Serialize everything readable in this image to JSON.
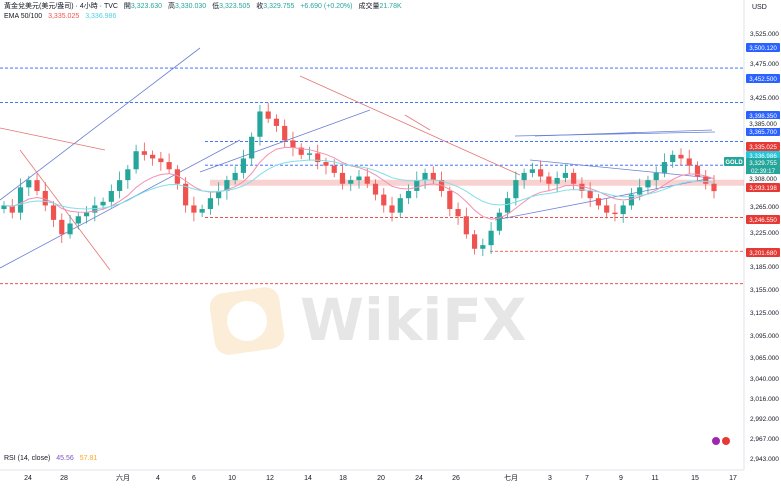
{
  "header": {
    "symbol_title": "黃金兌美元(美元/盎司) · 4小時 · TVC",
    "ohlc": {
      "open_label": "開",
      "open": "3,323.630",
      "high_label": "高",
      "high": "3,330.030",
      "low_label": "低",
      "low": "3,323.505",
      "close_label": "收",
      "close": "3,329.755",
      "change": "+6.690 (+0.20%)",
      "volume_label": "成交量",
      "volume": "21.78K"
    },
    "ema_label": "EMA 50/100",
    "ema50": "3,335.025",
    "ema100": "3,336.986"
  },
  "rsi": {
    "label": "RSI (14, close)",
    "value1": "45.56",
    "value2": "57.81"
  },
  "currency": "USD",
  "watermark": "WikiFX",
  "colors": {
    "up": "#26a69a",
    "down": "#ef5350",
    "trendline": "#6b7fd7",
    "level_red": "#e53935",
    "level_blue": "#2962ff",
    "ema50": "#f48fb1",
    "ema100": "#80deea"
  },
  "axis": {
    "y_ticks": [
      "3,525.000",
      "3,475.000",
      "3,425.000",
      "3,265.000",
      "3,225.000",
      "3,185.000",
      "3,155.000",
      "3,125.000",
      "3,095.000",
      "3,065.000",
      "3,040.000",
      "3,016.000",
      "2,992.000",
      "2,967.000",
      "2,943.000"
    ],
    "x_ticks": [
      "24",
      "28",
      "六月",
      "4",
      "6",
      "10",
      "12",
      "14",
      "18",
      "20",
      "24",
      "26",
      "七月",
      "3",
      "7",
      "9",
      "11",
      "15",
      "17"
    ]
  },
  "price_labels": [
    {
      "text": "3,500.120",
      "kind": "blue"
    },
    {
      "text": "3,452.500",
      "kind": "blue"
    },
    {
      "text": "3,398.350",
      "kind": "blue"
    },
    {
      "text": "3,365.700",
      "kind": "blue"
    },
    {
      "text": "3,385.000",
      "kind": "gray"
    },
    {
      "text": "3,335.025",
      "kind": "red"
    },
    {
      "text": "3,336.986",
      "kind": "teal"
    },
    {
      "text": "3,329.755",
      "kind": "green"
    },
    {
      "text": "02:39:17",
      "kind": "green"
    },
    {
      "text": "3,308.000",
      "kind": "gray"
    },
    {
      "text": "3,293.198",
      "kind": "red"
    },
    {
      "text": "3,246.550",
      "kind": "red"
    },
    {
      "text": "3,201.680",
      "kind": "red"
    }
  ],
  "symbol_tag": "GOLD",
  "chart_data": {
    "type": "candlestick",
    "y_range": [
      2930,
      3550
    ],
    "levels": [
      {
        "value": 3500.12,
        "style": "blue-dashed"
      },
      {
        "value": 3452.5,
        "style": "blue-dashed"
      },
      {
        "value": 3398.35,
        "style": "blue-dashed"
      },
      {
        "value": 3365.7,
        "style": "blue-dashed"
      },
      {
        "value": 3293.198,
        "style": "red-dashed"
      },
      {
        "value": 3246.55,
        "style": "red-dashed"
      },
      {
        "value": 3201.68,
        "style": "red-dashed"
      }
    ],
    "close_path": [
      3310,
      3300,
      3335,
      3345,
      3330,
      3310,
      3290,
      3270,
      3285,
      3295,
      3300,
      3310,
      3315,
      3330,
      3345,
      3360,
      3385,
      3380,
      3375,
      3370,
      3360,
      3340,
      3310,
      3300,
      3305,
      3320,
      3330,
      3345,
      3355,
      3375,
      3405,
      3440,
      3430,
      3420,
      3400,
      3390,
      3380,
      3382,
      3370,
      3365,
      3355,
      3340,
      3345,
      3350,
      3340,
      3325,
      3310,
      3300,
      3320,
      3330,
      3345,
      3355,
      3345,
      3330,
      3305,
      3295,
      3270,
      3250,
      3255,
      3275,
      3300,
      3320,
      3345,
      3355,
      3360,
      3350,
      3340,
      3348,
      3355,
      3340,
      3330,
      3320,
      3310,
      3300,
      3298,
      3310,
      3325,
      3335,
      3345,
      3355,
      3370,
      3380,
      3375,
      3365,
      3350,
      3340,
      3329.755
    ]
  }
}
